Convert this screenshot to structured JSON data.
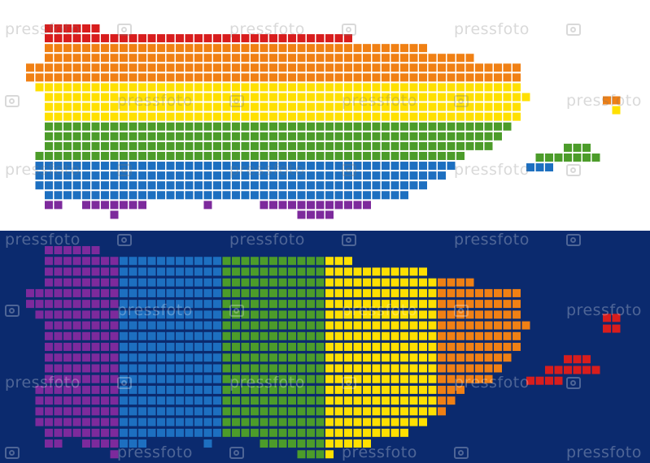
{
  "panels": [
    {
      "id": "top",
      "background": "#ffffff",
      "gradient": "horizontal-stripes",
      "watermark_color": "rgba(120,120,120,0.28)"
    },
    {
      "id": "bottom",
      "background": "#0b2a6e",
      "gradient": "vertical-stripes",
      "watermark_color": "rgba(255,255,255,0.28)"
    }
  ],
  "rainbow_colors": [
    "#d81d1d",
    "#f08014",
    "#ffe000",
    "#4c9c2a",
    "#1d6fc0",
    "#7d2a9c"
  ],
  "watermark": {
    "text": "pressfoto",
    "icon": "camera-icon"
  }
}
